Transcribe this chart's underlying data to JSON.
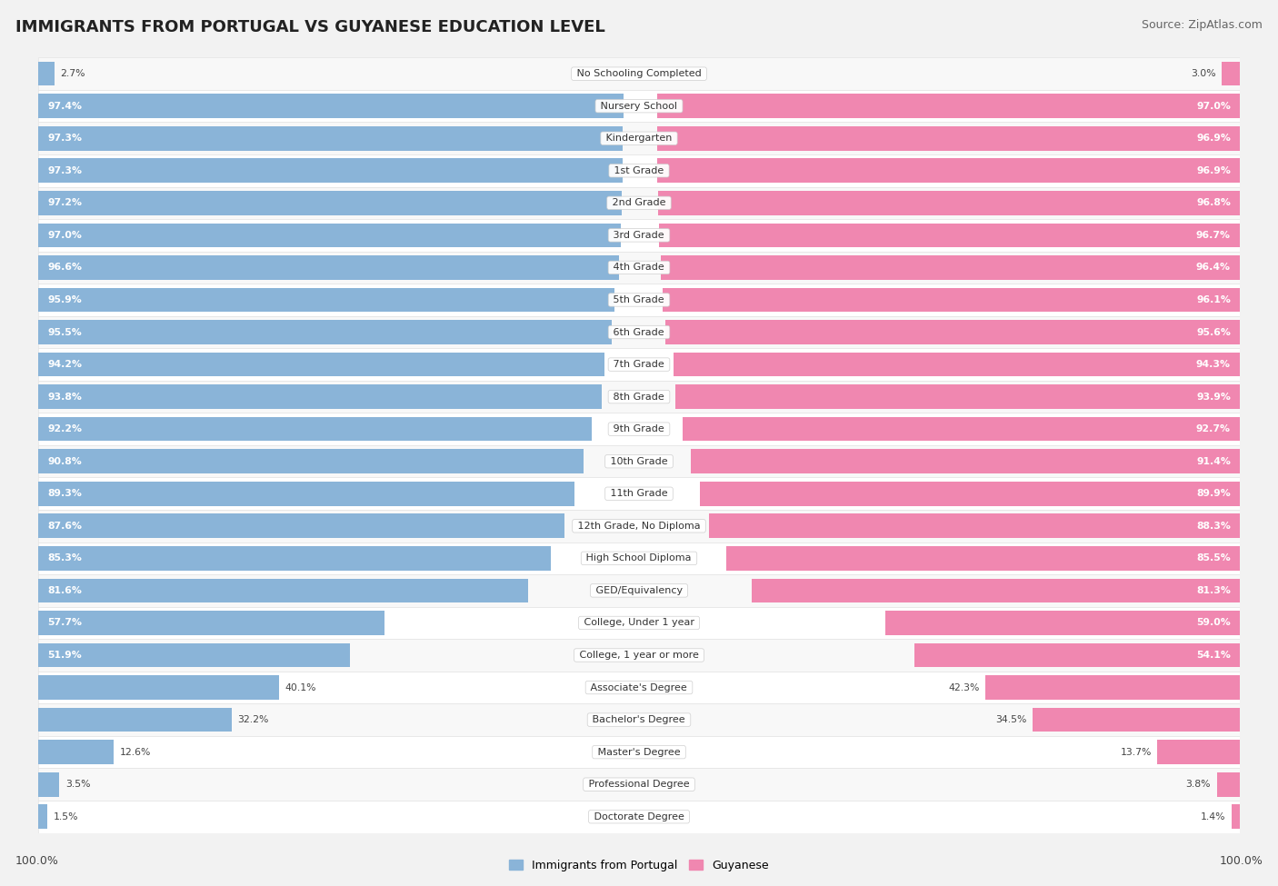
{
  "title": "IMMIGRANTS FROM PORTUGAL VS GUYANESE EDUCATION LEVEL",
  "source": "Source: ZipAtlas.com",
  "categories": [
    "No Schooling Completed",
    "Nursery School",
    "Kindergarten",
    "1st Grade",
    "2nd Grade",
    "3rd Grade",
    "4th Grade",
    "5th Grade",
    "6th Grade",
    "7th Grade",
    "8th Grade",
    "9th Grade",
    "10th Grade",
    "11th Grade",
    "12th Grade, No Diploma",
    "High School Diploma",
    "GED/Equivalency",
    "College, Under 1 year",
    "College, 1 year or more",
    "Associate's Degree",
    "Bachelor's Degree",
    "Master's Degree",
    "Professional Degree",
    "Doctorate Degree"
  ],
  "portugal_values": [
    2.7,
    97.4,
    97.3,
    97.3,
    97.2,
    97.0,
    96.6,
    95.9,
    95.5,
    94.2,
    93.8,
    92.2,
    90.8,
    89.3,
    87.6,
    85.3,
    81.6,
    57.7,
    51.9,
    40.1,
    32.2,
    12.6,
    3.5,
    1.5
  ],
  "guyanese_values": [
    3.0,
    97.0,
    96.9,
    96.9,
    96.8,
    96.7,
    96.4,
    96.1,
    95.6,
    94.3,
    93.9,
    92.7,
    91.4,
    89.9,
    88.3,
    85.5,
    81.3,
    59.0,
    54.1,
    42.3,
    34.5,
    13.7,
    3.8,
    1.4
  ],
  "portugal_color": "#8ab4d8",
  "guyanese_color": "#f087b0",
  "background_color": "#f2f2f2",
  "row_color_a": "#f8f8f8",
  "row_color_b": "#ffffff",
  "legend_label_portugal": "Immigrants from Portugal",
  "legend_label_guyanese": "Guyanese",
  "title_fontsize": 13,
  "source_fontsize": 9,
  "label_fontsize": 8,
  "value_fontsize": 7.8
}
